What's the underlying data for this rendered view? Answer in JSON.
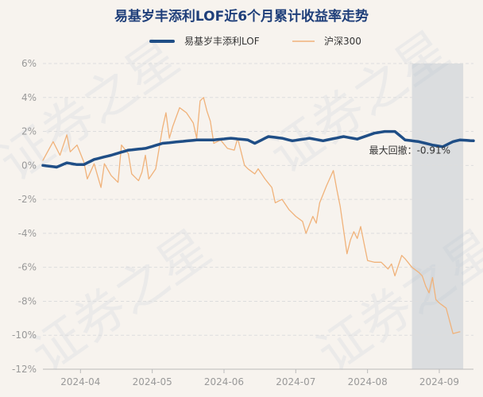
{
  "chart_data": {
    "type": "line",
    "title": "易基岁丰添利LOF近6个月累计收益率走势",
    "xlabel": "",
    "ylabel": "",
    "ylim": [
      -12,
      6
    ],
    "x_ticks": [
      "2024-04",
      "2024-05",
      "2024-06",
      "2024-07",
      "2024-08",
      "2024-09"
    ],
    "y_ticks": [
      "6%",
      "4%",
      "2%",
      "0%",
      "-2%",
      "-4%",
      "-6%",
      "-8%",
      "-10%",
      "-12%"
    ],
    "y_tick_values": [
      6,
      4,
      2,
      0,
      -2,
      -4,
      -6,
      -8,
      -10,
      -12
    ],
    "x_tick_index": [
      11,
      32,
      53,
      74,
      95,
      116
    ],
    "n_points": 122,
    "grid": "horizontal",
    "legend_position": "top-center",
    "drawdown": {
      "label": "最大回撤：-0.91%",
      "start_index": 108,
      "end_index": 123
    },
    "series": [
      {
        "name": "易基岁丰添利LOF",
        "color": "#1f4e86",
        "anchors": [
          [
            0,
            0.0
          ],
          [
            4,
            -0.1
          ],
          [
            7,
            0.15
          ],
          [
            10,
            0.05
          ],
          [
            12,
            0.05
          ],
          [
            15,
            0.35
          ],
          [
            20,
            0.6
          ],
          [
            25,
            0.9
          ],
          [
            30,
            1.0
          ],
          [
            35,
            1.3
          ],
          [
            40,
            1.4
          ],
          [
            45,
            1.5
          ],
          [
            50,
            1.5
          ],
          [
            55,
            1.6
          ],
          [
            60,
            1.5
          ],
          [
            62,
            1.3
          ],
          [
            66,
            1.7
          ],
          [
            70,
            1.6
          ],
          [
            73,
            1.45
          ],
          [
            78,
            1.6
          ],
          [
            82,
            1.45
          ],
          [
            88,
            1.7
          ],
          [
            92,
            1.55
          ],
          [
            97,
            1.9
          ],
          [
            100,
            2.0
          ],
          [
            103,
            2.0
          ],
          [
            106,
            1.5
          ],
          [
            110,
            1.4
          ],
          [
            114,
            1.2
          ],
          [
            117,
            1.1
          ],
          [
            120,
            1.4
          ],
          [
            122,
            1.5
          ],
          [
            126,
            1.45
          ]
        ]
      },
      {
        "name": "沪深300",
        "color": "#f0b27a",
        "anchors": [
          [
            0,
            0.3
          ],
          [
            3,
            1.4
          ],
          [
            5,
            0.6
          ],
          [
            7,
            1.8
          ],
          [
            8,
            0.8
          ],
          [
            10,
            1.2
          ],
          [
            12,
            0.2
          ],
          [
            13,
            -0.8
          ],
          [
            15,
            0.1
          ],
          [
            17,
            -1.3
          ],
          [
            18,
            0.1
          ],
          [
            20,
            -0.6
          ],
          [
            22,
            -1.0
          ],
          [
            23,
            1.2
          ],
          [
            25,
            0.7
          ],
          [
            26,
            -0.5
          ],
          [
            28,
            -0.9
          ],
          [
            29,
            -0.4
          ],
          [
            30,
            0.6
          ],
          [
            31,
            -0.8
          ],
          [
            33,
            -0.2
          ],
          [
            35,
            2.2
          ],
          [
            36,
            3.1
          ],
          [
            37,
            1.6
          ],
          [
            38,
            2.3
          ],
          [
            40,
            3.4
          ],
          [
            42,
            3.1
          ],
          [
            44,
            2.5
          ],
          [
            45,
            1.6
          ],
          [
            46,
            3.8
          ],
          [
            47,
            4.0
          ],
          [
            48,
            3.2
          ],
          [
            49,
            2.6
          ],
          [
            50,
            1.3
          ],
          [
            52,
            1.5
          ],
          [
            54,
            1.0
          ],
          [
            56,
            0.9
          ],
          [
            57,
            1.6
          ],
          [
            59,
            0.0
          ],
          [
            60,
            -0.2
          ],
          [
            62,
            -0.5
          ],
          [
            63,
            -0.2
          ],
          [
            65,
            -0.8
          ],
          [
            67,
            -1.3
          ],
          [
            68,
            -2.2
          ],
          [
            70,
            -2.0
          ],
          [
            72,
            -2.6
          ],
          [
            74,
            -3.0
          ],
          [
            76,
            -3.3
          ],
          [
            77,
            -4.0
          ],
          [
            79,
            -3.0
          ],
          [
            80,
            -3.4
          ],
          [
            81,
            -2.2
          ],
          [
            83,
            -1.2
          ],
          [
            85,
            -0.3
          ],
          [
            86,
            -1.4
          ],
          [
            87,
            -2.4
          ],
          [
            88,
            -3.8
          ],
          [
            89,
            -5.2
          ],
          [
            90,
            -4.4
          ],
          [
            91,
            -3.9
          ],
          [
            92,
            -4.3
          ],
          [
            93,
            -3.6
          ],
          [
            95,
            -5.6
          ],
          [
            97,
            -5.7
          ],
          [
            99,
            -5.7
          ],
          [
            101,
            -6.1
          ],
          [
            102,
            -5.8
          ],
          [
            103,
            -6.5
          ],
          [
            105,
            -5.3
          ],
          [
            106,
            -5.5
          ],
          [
            108,
            -6.0
          ],
          [
            110,
            -6.3
          ],
          [
            111,
            -6.5
          ],
          [
            112,
            -7.1
          ],
          [
            113,
            -7.5
          ],
          [
            114,
            -6.6
          ],
          [
            115,
            -7.9
          ],
          [
            116,
            -8.1
          ],
          [
            118,
            -8.4
          ],
          [
            120,
            -9.9
          ],
          [
            122,
            -9.8
          ]
        ]
      }
    ]
  },
  "legend": {
    "fund": "易基岁丰添利LOF",
    "index": "沪深300"
  },
  "watermark": "证券之星",
  "colors": {
    "background": "#f7f3ee",
    "title": "#1f3f7a",
    "grid": "#dddddd",
    "drawdown_fill": "#b9c3cc"
  }
}
